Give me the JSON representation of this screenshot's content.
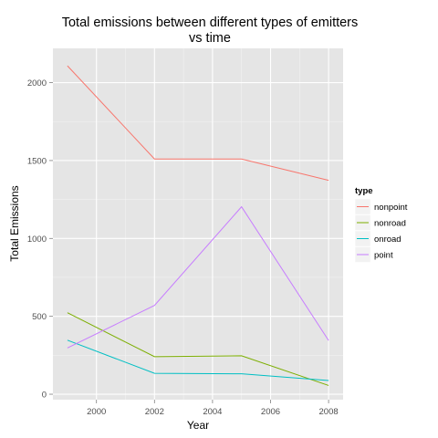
{
  "chart_data": {
    "type": "line",
    "title_lines": [
      "Total emissions between different types of emitters",
      "vs time"
    ],
    "xlabel": "Year",
    "ylabel": "Total Emissions",
    "x": [
      1999,
      2002,
      2005,
      2008
    ],
    "xlim": [
      1998.5,
      2008.5
    ],
    "ylim": [
      -35,
      2220
    ],
    "xticks": [
      2000,
      2002,
      2004,
      2006,
      2008
    ],
    "yticks": [
      0,
      500,
      1000,
      1500,
      2000
    ],
    "grid": true,
    "legend_title": "type",
    "legend_position": "right",
    "series": [
      {
        "name": "nonpoint",
        "color": "#F8766D",
        "values": [
          2108,
          1510,
          1510,
          1373
        ]
      },
      {
        "name": "nonroad",
        "color": "#7CAE00",
        "values": [
          523,
          241,
          247,
          56
        ]
      },
      {
        "name": "onroad",
        "color": "#00BFC4",
        "values": [
          347,
          134,
          131,
          88
        ]
      },
      {
        "name": "point",
        "color": "#C77CFF",
        "values": [
          297,
          570,
          1203,
          345
        ]
      }
    ]
  }
}
